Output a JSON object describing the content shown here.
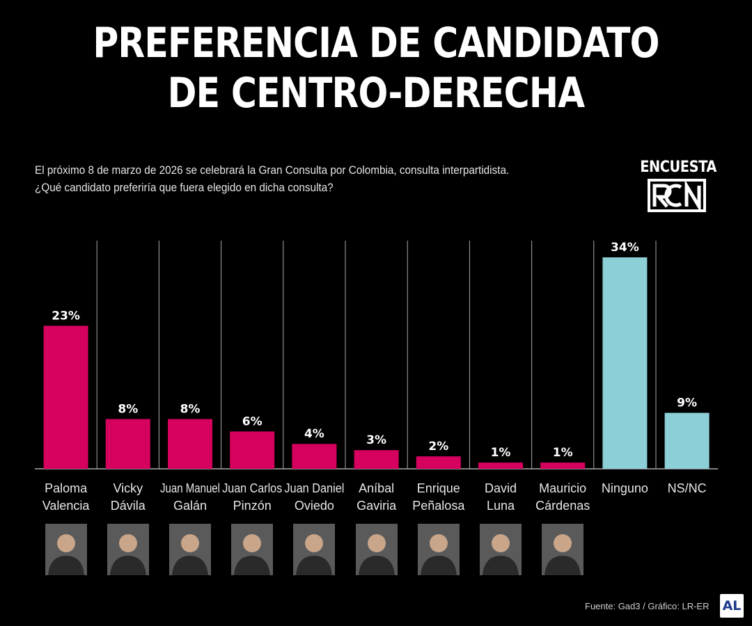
{
  "header": {
    "title_line1": "PREFERENCIA DE CANDIDATO",
    "title_line2": "DE CENTRO-DERECHA",
    "subtitle_line1": "El próximo 8 de marzo de 2026 se celebrará la Gran Consulta por Colombia, consulta interpartidista.",
    "subtitle_line2": "¿Qué candidato preferiría que fuera elegido en dicha consulta?"
  },
  "logo": {
    "label": "ENCUESTA",
    "mark": "RCN",
    "icon": "rcn-logo-icon"
  },
  "footer": {
    "source": "Fuente: Gad3 / Gráfico: LR-ER",
    "badge": "AL"
  },
  "colors": {
    "candidate": "#d6005f",
    "other": "#8ccfd6",
    "background": "#000000",
    "divider": "#aaaaaa"
  },
  "chart_data": {
    "type": "bar",
    "ylim": [
      0,
      34
    ],
    "grid": false,
    "categories": [
      [
        "Paloma",
        "Valencia"
      ],
      [
        "Vicky",
        "Dávila"
      ],
      [
        "Juan Manuel",
        "Galán"
      ],
      [
        "Juan Carlos",
        "Pinzón"
      ],
      [
        "Juan Daniel",
        "Oviedo"
      ],
      [
        "Aníbal",
        "Gaviria"
      ],
      [
        "Enrique",
        "Peñalosa"
      ],
      [
        "David",
        "Luna"
      ],
      [
        "Mauricio",
        "Cárdenas"
      ],
      [
        "Ninguno"
      ],
      [
        "NS/NC"
      ]
    ],
    "values": [
      23,
      8,
      8,
      6,
      4,
      3,
      2,
      1,
      1,
      34,
      9
    ],
    "value_labels": [
      "23%",
      "8%",
      "8%",
      "6%",
      "4%",
      "3%",
      "2%",
      "1%",
      "1%",
      "34%",
      "9%"
    ],
    "bar_color_keys": [
      "candidate",
      "candidate",
      "candidate",
      "candidate",
      "candidate",
      "candidate",
      "candidate",
      "candidate",
      "candidate",
      "other",
      "other"
    ],
    "photos": [
      "portrait-icon",
      "portrait-icon",
      "portrait-icon",
      "portrait-icon",
      "portrait-icon",
      "portrait-icon",
      "portrait-icon",
      "portrait-icon",
      "portrait-icon",
      null,
      null
    ]
  }
}
